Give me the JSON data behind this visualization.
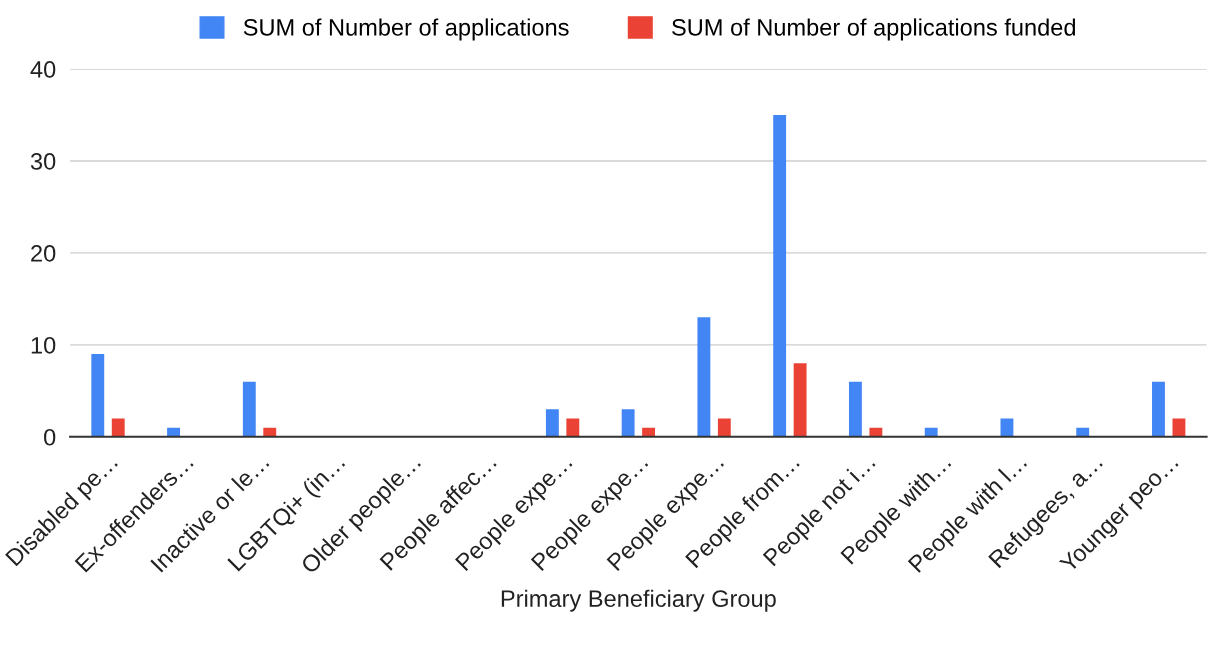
{
  "chart_data": {
    "type": "bar",
    "xlabel": "Primary Beneficiary Group",
    "categories": [
      "Disabled pe…",
      "Ex-offenders…",
      "Inactive or le…",
      "LGBTQi+ (in…",
      "Older people…",
      "People affec…",
      "People expe…",
      "People expe…",
      "People expe…",
      "People from…",
      "People not i…",
      "People with…",
      "People with l…",
      "Refugees, a…",
      "Younger peo…"
    ],
    "series": [
      {
        "name": "SUM of Number of applications",
        "color": "#4285f4",
        "values": [
          9,
          1,
          6,
          0,
          0,
          0,
          3,
          3,
          13,
          35,
          6,
          1,
          2,
          1,
          6
        ]
      },
      {
        "name": "SUM of Number of applications funded",
        "color": "#ea4335",
        "values": [
          2,
          0,
          1,
          0,
          0,
          0,
          2,
          1,
          2,
          8,
          1,
          0,
          0,
          0,
          2
        ]
      }
    ],
    "ylim": [
      0,
      40
    ],
    "yticks": [
      0,
      10,
      20,
      30,
      40
    ],
    "grid": "y",
    "legend": "top"
  }
}
